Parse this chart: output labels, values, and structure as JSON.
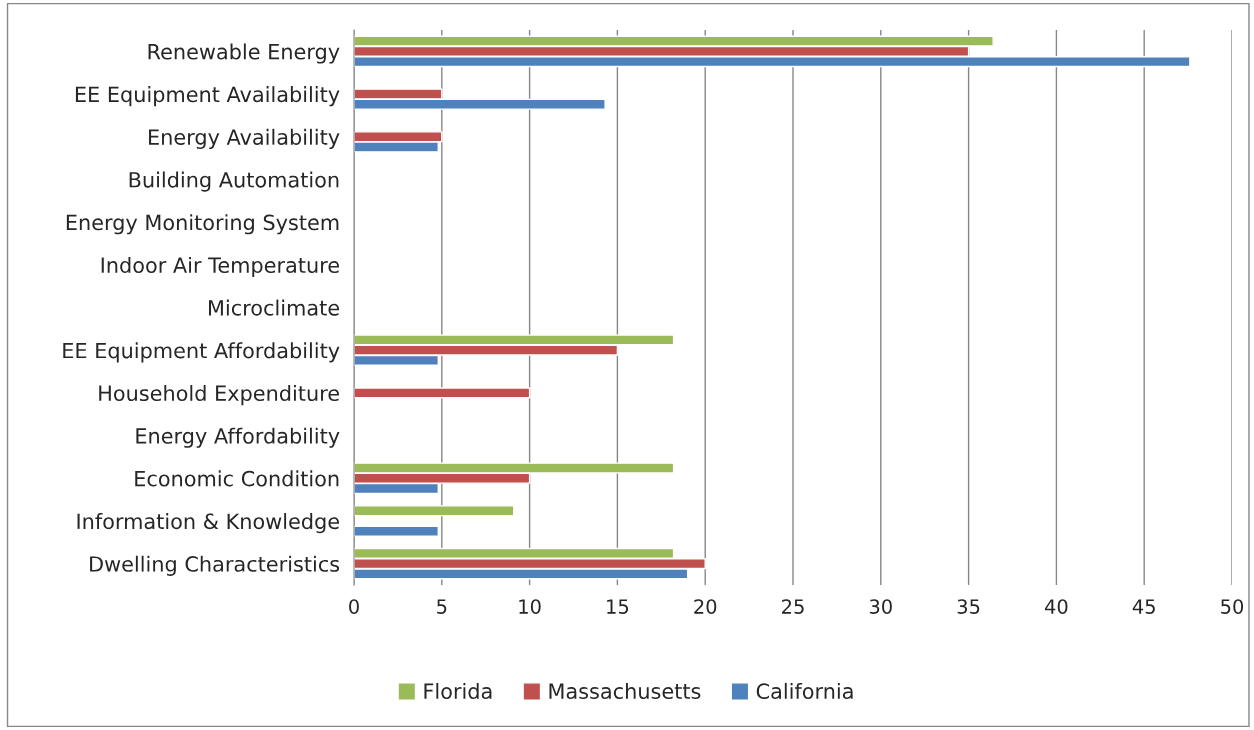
{
  "chart_data": {
    "type": "bar",
    "orientation": "horizontal",
    "categories": [
      "Renewable Energy",
      "EE Equipment Availability",
      "Energy Availability",
      "Building Automation",
      "Energy Monitoring System",
      "Indoor Air Temperature",
      "Microclimate",
      "EE Equipment Affordability",
      "Household Expenditure",
      "Energy Affordability",
      "Economic Condition",
      "Information & Knowledge",
      "Dwelling Characteristics"
    ],
    "series": [
      {
        "name": "Florida",
        "color": "#9bbb59",
        "values": [
          36.4,
          null,
          null,
          null,
          null,
          null,
          null,
          18.2,
          null,
          null,
          18.2,
          9.1,
          18.2
        ]
      },
      {
        "name": "Massachusetts",
        "color": "#c0504d",
        "values": [
          35.0,
          5.0,
          5.0,
          null,
          null,
          null,
          null,
          15.0,
          10.0,
          null,
          10.0,
          null,
          20.0
        ]
      },
      {
        "name": "California",
        "color": "#4f81bd",
        "values": [
          47.6,
          14.3,
          4.8,
          null,
          null,
          null,
          null,
          4.8,
          null,
          null,
          4.8,
          4.8,
          19.0
        ]
      }
    ],
    "xlim": [
      0,
      50
    ],
    "xticks": [
      0,
      5,
      10,
      15,
      20,
      25,
      30,
      35,
      40,
      45,
      50
    ],
    "grid": "x",
    "legend": "bottom"
  }
}
